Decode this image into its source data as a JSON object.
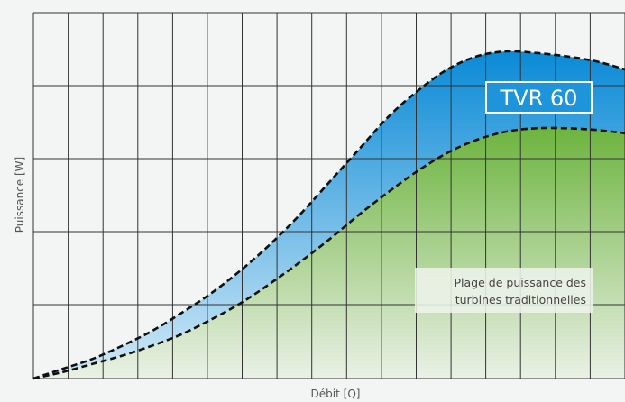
{
  "chart_data": {
    "type": "area",
    "title": "",
    "xlabel": "Débit [Q]",
    "ylabel": "Puissance [W]",
    "grid": true,
    "x_ticks_labeled": false,
    "y_ticks_labeled": false,
    "series": [
      {
        "name": "TVR 60",
        "color": "#1a8fd8",
        "line_style": "dashed",
        "x": [
          0,
          0.05,
          0.1,
          0.15,
          0.2,
          0.25,
          0.3,
          0.35,
          0.4,
          0.45,
          0.5,
          0.55,
          0.6,
          0.65,
          0.7,
          0.75,
          0.8,
          0.85,
          0.9,
          0.95,
          1.0
        ],
        "values": [
          0,
          0.03,
          0.06,
          0.1,
          0.145,
          0.2,
          0.26,
          0.33,
          0.41,
          0.5,
          0.6,
          0.7,
          0.8,
          0.88,
          0.945,
          0.985,
          1.0,
          0.995,
          0.985,
          0.97,
          0.945
        ]
      },
      {
        "name": "Plage de puissance des turbines traditionnelles",
        "color": "#7fbf3f",
        "line_style": "dashed",
        "x": [
          0,
          0.05,
          0.1,
          0.15,
          0.2,
          0.25,
          0.3,
          0.35,
          0.4,
          0.45,
          0.5,
          0.55,
          0.6,
          0.65,
          0.7,
          0.75,
          0.8,
          0.85,
          0.9,
          0.95,
          1.0
        ],
        "values": [
          0,
          0.02,
          0.045,
          0.07,
          0.1,
          0.135,
          0.18,
          0.23,
          0.29,
          0.355,
          0.425,
          0.5,
          0.57,
          0.635,
          0.69,
          0.73,
          0.755,
          0.765,
          0.765,
          0.76,
          0.75
        ]
      }
    ],
    "annotations": [
      {
        "text": "TVR 60",
        "series": "TVR 60"
      },
      {
        "text_lines": [
          "Plage de puissance des",
          "turbines traditionnelles"
        ],
        "series": "Plage de puissance des turbines traditionnelles"
      }
    ]
  },
  "labels": {
    "xlabel": "Débit [Q]",
    "ylabel": "Puissance [W]",
    "tvr": "TVR 60",
    "note_line1": "Plage de puissance des",
    "note_line2": "turbines traditionnelles"
  },
  "colors": {
    "grid": "#333333",
    "blue_top": "#0a8ad6",
    "blue_bottom": "#cce6f6",
    "green_top": "#6db43e",
    "green_bottom": "#e9f0e4"
  }
}
